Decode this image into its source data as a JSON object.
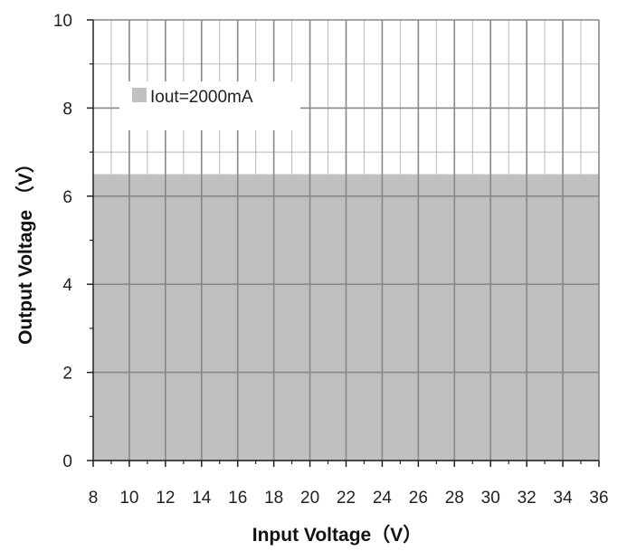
{
  "chart_data": {
    "type": "area",
    "title": "",
    "xlabel": "Input Voltage（V）",
    "ylabel": "Output Voltage （V）",
    "xlim": [
      8,
      36
    ],
    "ylim": [
      0,
      10
    ],
    "x_ticks": [
      8,
      10,
      12,
      14,
      16,
      18,
      20,
      22,
      24,
      26,
      28,
      30,
      32,
      34,
      36
    ],
    "y_ticks": [
      0,
      2,
      4,
      6,
      8,
      10
    ],
    "grid": true,
    "legend_position": "top-left",
    "series": [
      {
        "name": "Iout=2000mA",
        "color": "#c0c0c0",
        "x": [
          8,
          36
        ],
        "y_lower": [
          0,
          0
        ],
        "y_upper": [
          6.5,
          6.5
        ]
      }
    ]
  },
  "colors": {
    "grid_major": "#888888",
    "grid_minor": "#b8b8b8",
    "fill": "#c0c0c0",
    "axis": "#222222",
    "background": "#ffffff"
  }
}
